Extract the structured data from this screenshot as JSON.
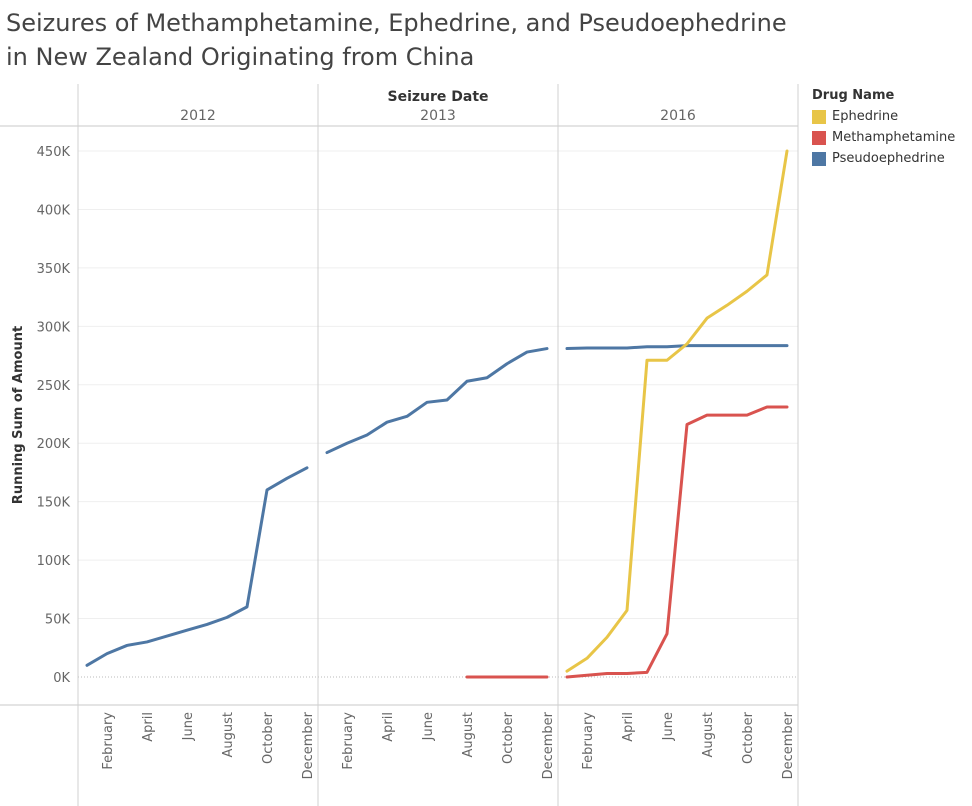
{
  "title": "Seizures of Methamphetamine, Ephedrine, and Pseudoephedrine in New Zealand Originating from China",
  "legend": {
    "title": "Drug Name",
    "items": [
      {
        "label": "Ephedrine",
        "color": "#e8c547"
      },
      {
        "label": "Methamphetamine",
        "color": "#d9534f"
      },
      {
        "label": "Pseudoephedrine",
        "color": "#4e77a4"
      }
    ]
  },
  "chart_data": {
    "type": "line",
    "xlabel": "Seizure Date",
    "ylabel": "Running Sum of Amount",
    "ylim": [
      0,
      450000
    ],
    "y_ticks": [
      0,
      50000,
      100000,
      150000,
      200000,
      250000,
      300000,
      350000,
      400000,
      450000
    ],
    "y_tick_labels": [
      "0K",
      "50K",
      "100K",
      "150K",
      "200K",
      "250K",
      "300K",
      "350K",
      "400K",
      "450K"
    ],
    "grid": true,
    "legend_position": "top-right",
    "panels": [
      {
        "year": "2012",
        "x_tick_labels": [
          "February",
          "April",
          "June",
          "August",
          "October",
          "December"
        ]
      },
      {
        "year": "2013",
        "x_tick_labels": [
          "February",
          "April",
          "June",
          "August",
          "October",
          "December"
        ]
      },
      {
        "year": "2016",
        "x_tick_labels": [
          "February",
          "April",
          "June",
          "August",
          "October",
          "December"
        ]
      }
    ],
    "series": [
      {
        "name": "Pseudoephedrine",
        "color": "#4e77a4",
        "data": {
          "2012": [
            [
              1,
              10000
            ],
            [
              2,
              20000
            ],
            [
              3,
              27000
            ],
            [
              4,
              30000
            ],
            [
              5,
              35000
            ],
            [
              6,
              40000
            ],
            [
              7,
              45000
            ],
            [
              8,
              51000
            ],
            [
              9,
              60000
            ],
            [
              10,
              160000
            ],
            [
              11,
              170000
            ],
            [
              12,
              179000
            ]
          ],
          "2013": [
            [
              1,
              192000
            ],
            [
              2,
              200000
            ],
            [
              3,
              207000
            ],
            [
              4,
              218000
            ],
            [
              5,
              223000
            ],
            [
              6,
              235000
            ],
            [
              7,
              237000
            ],
            [
              8,
              253000
            ],
            [
              9,
              256000
            ],
            [
              10,
              268000
            ],
            [
              11,
              278000
            ],
            [
              12,
              281000
            ]
          ],
          "2016": [
            [
              1,
              281000
            ],
            [
              2,
              281500
            ],
            [
              3,
              281500
            ],
            [
              4,
              281500
            ],
            [
              5,
              282500
            ],
            [
              6,
              282500
            ],
            [
              7,
              283500
            ],
            [
              8,
              283500
            ],
            [
              9,
              283500
            ],
            [
              10,
              283500
            ],
            [
              11,
              283500
            ],
            [
              12,
              283500
            ]
          ]
        }
      },
      {
        "name": "Ephedrine",
        "color": "#e8c547",
        "data": {
          "2016": [
            [
              1,
              5000
            ],
            [
              2,
              16000
            ],
            [
              3,
              34000
            ],
            [
              4,
              57000
            ],
            [
              5,
              271000
            ],
            [
              6,
              271000
            ],
            [
              7,
              285000
            ],
            [
              8,
              307000
            ],
            [
              9,
              318000
            ],
            [
              10,
              330000
            ],
            [
              11,
              344000
            ],
            [
              12,
              450000
            ]
          ]
        }
      },
      {
        "name": "Methamphetamine",
        "color": "#d9534f",
        "data": {
          "2013": [
            [
              8,
              0
            ],
            [
              9,
              0
            ],
            [
              10,
              0
            ],
            [
              11,
              0
            ],
            [
              12,
              0
            ]
          ],
          "2016": [
            [
              1,
              0
            ],
            [
              2,
              1500
            ],
            [
              3,
              3000
            ],
            [
              4,
              3000
            ],
            [
              5,
              4000
            ],
            [
              6,
              37000
            ],
            [
              7,
              216000
            ],
            [
              8,
              224000
            ],
            [
              9,
              224000
            ],
            [
              10,
              224000
            ],
            [
              11,
              231000
            ],
            [
              12,
              231000
            ]
          ]
        }
      }
    ]
  }
}
